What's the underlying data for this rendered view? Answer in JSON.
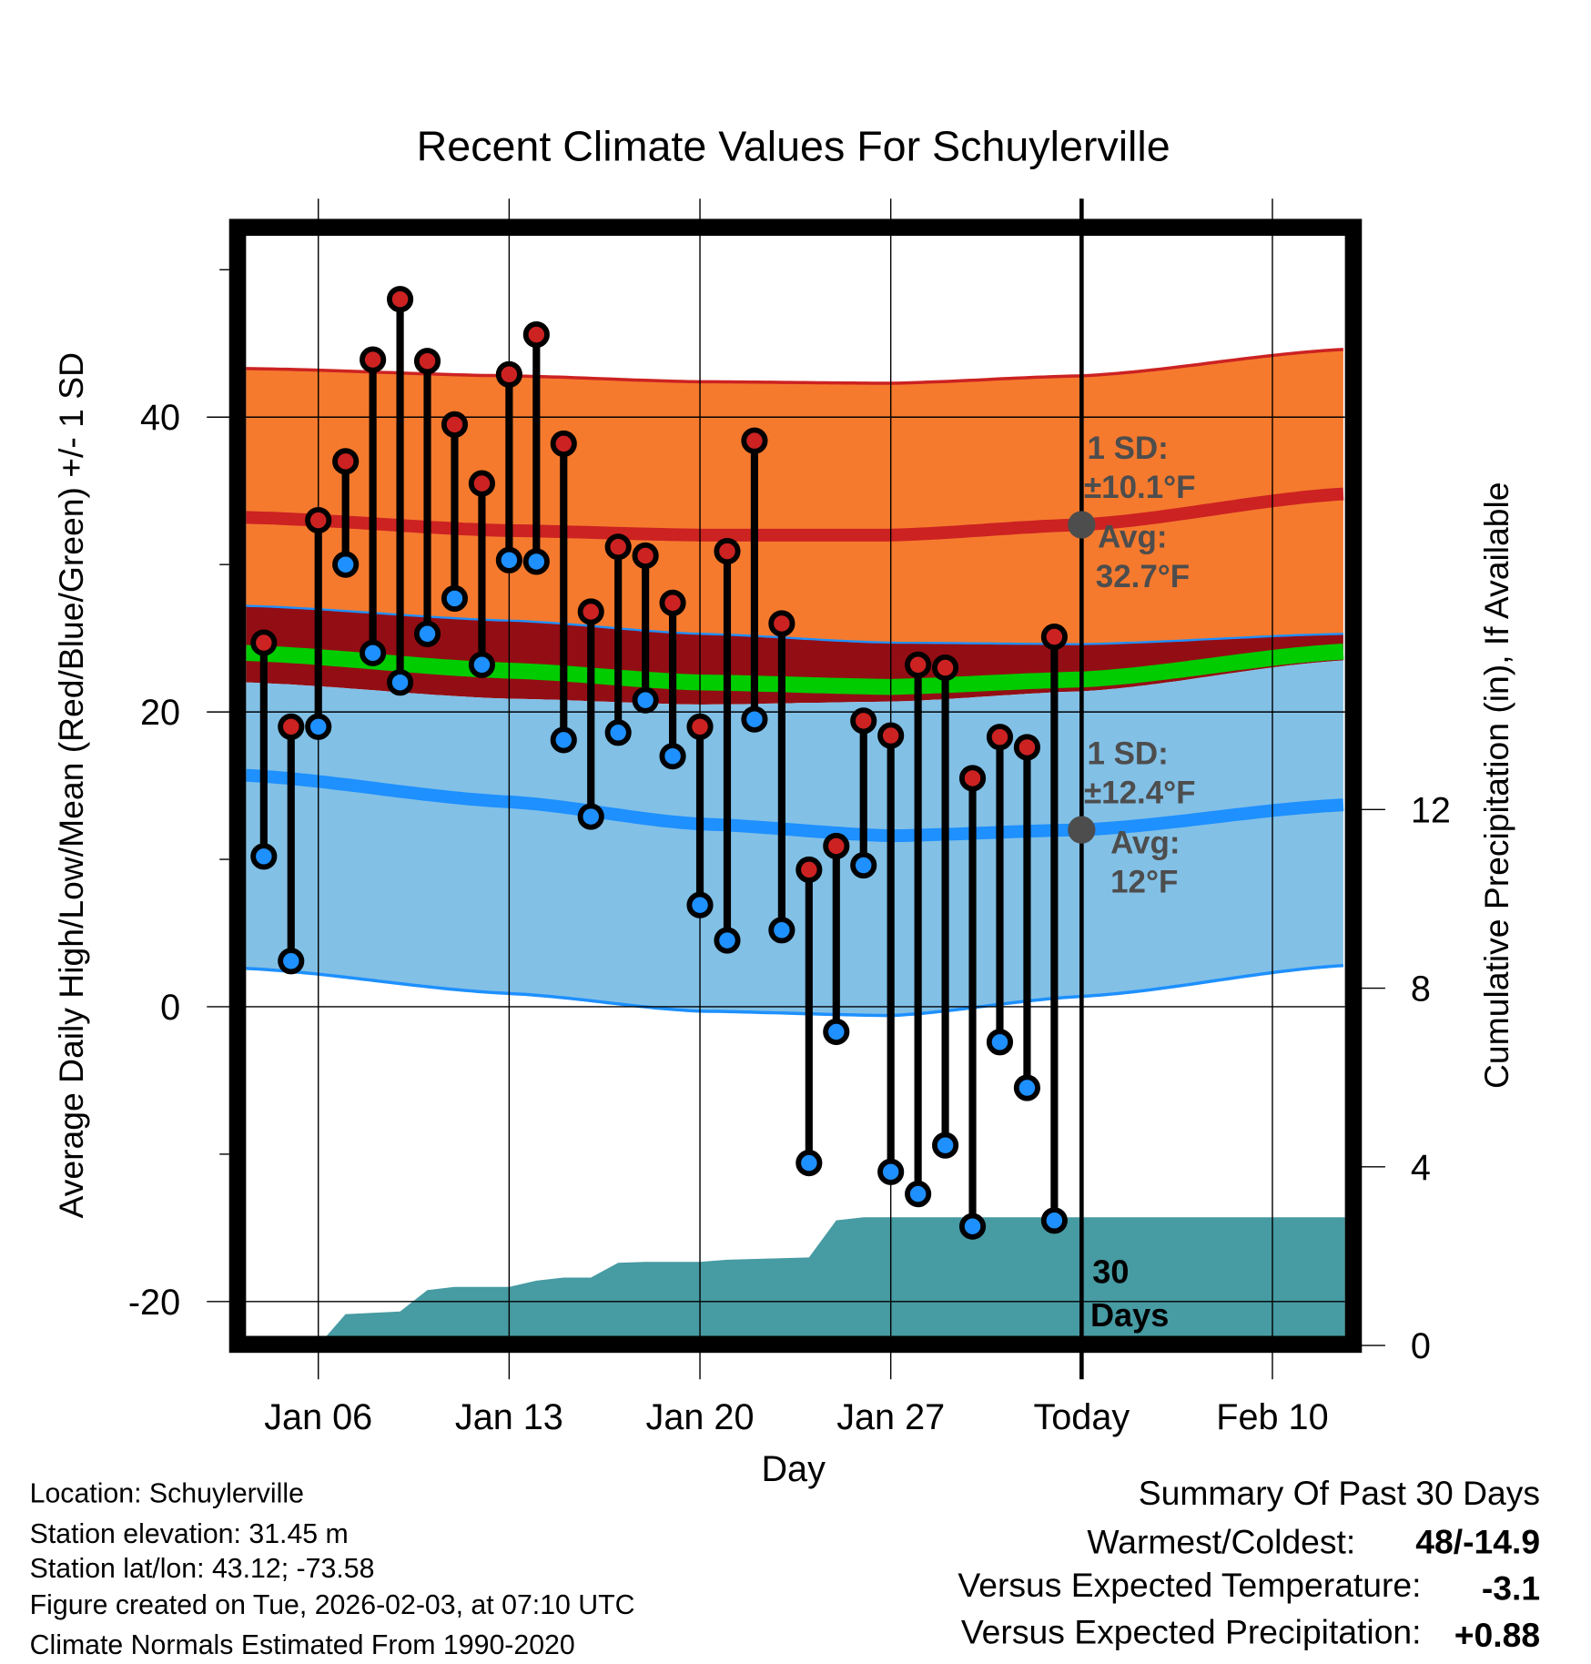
{
  "chart_data": {
    "type": "line",
    "title": "Recent Climate Values For Schuylerville",
    "xlabel": "Day",
    "ylabel": "Average Daily High/Low/Mean (Red/Blue/Green) +/- 1 SD",
    "y2label": "Cumulative Precipitation (in), If Available",
    "x_unit": "days since Jan 06",
    "xlim": [
      -2.65,
      37.66
    ],
    "ylim": [
      -22.4,
      52.3
    ],
    "y2lim": [
      0,
      24.85
    ],
    "x_ticks": [
      {
        "x": 0,
        "label": "Jan 06"
      },
      {
        "x": 7,
        "label": "Jan 13"
      },
      {
        "x": 14,
        "label": "Jan 20"
      },
      {
        "x": 21,
        "label": "Jan 27"
      },
      {
        "x": 28,
        "label": "Today"
      },
      {
        "x": 35,
        "label": "Feb 10"
      }
    ],
    "y_ticks": [
      {
        "v": -20,
        "label": "-20"
      },
      {
        "v": 0,
        "label": "0"
      },
      {
        "v": 20,
        "label": "20"
      },
      {
        "v": 40,
        "label": "40"
      }
    ],
    "y_minor_ticks": [
      -10,
      10,
      30,
      50
    ],
    "y2_ticks": [
      {
        "v": 0,
        "label": "0"
      },
      {
        "v": 4,
        "label": "4"
      },
      {
        "v": 8,
        "label": "8"
      },
      {
        "v": 12,
        "label": "12"
      }
    ],
    "grid": true,
    "today_x": 28,
    "observations": {
      "x": [
        -2,
        -1,
        0,
        1,
        2,
        3,
        4,
        5,
        6,
        7,
        8,
        9,
        10,
        11,
        12,
        13,
        14,
        15,
        16,
        17,
        18,
        19,
        20,
        21,
        22,
        23,
        24,
        25,
        26,
        27
      ],
      "high": [
        24.7,
        19.0,
        33.0,
        37.0,
        43.9,
        48.0,
        43.8,
        39.5,
        35.5,
        42.9,
        45.6,
        38.2,
        26.8,
        31.2,
        30.6,
        27.4,
        19.0,
        30.9,
        38.4,
        26.0,
        9.3,
        10.9,
        19.4,
        18.4,
        23.2,
        23.0,
        15.5,
        18.3,
        17.6,
        25.1
      ],
      "low": [
        10.2,
        3.1,
        19.0,
        30.0,
        24.0,
        22.0,
        25.3,
        27.7,
        23.2,
        30.3,
        30.2,
        18.1,
        12.9,
        18.6,
        20.8,
        17.0,
        6.9,
        4.5,
        19.5,
        5.2,
        -10.6,
        -1.7,
        9.6,
        -11.2,
        -12.7,
        -9.4,
        -14.9,
        -2.4,
        -5.5,
        -14.5
      ]
    },
    "normals": {
      "x": [
        -2.65,
        7,
        14,
        21,
        28,
        37.66
      ],
      "high_upper": [
        43.3,
        42.8,
        42.4,
        42.3,
        42.8,
        44.6
      ],
      "high_mean": [
        33.2,
        32.3,
        32.0,
        32.0,
        32.7,
        34.8
      ],
      "high_lower": [
        27.2,
        26.2,
        25.3,
        24.7,
        24.6,
        25.3
      ],
      "mean": [
        24.0,
        22.8,
        22.0,
        21.7,
        22.2,
        24.1
      ],
      "low_upper": [
        22.0,
        20.9,
        20.5,
        20.7,
        21.4,
        23.5
      ],
      "low_mean": [
        15.7,
        13.9,
        12.4,
        11.6,
        12.0,
        13.7
      ],
      "low_lower": [
        2.6,
        0.9,
        -0.3,
        -0.6,
        0.7,
        2.8
      ]
    },
    "precip": {
      "x": [
        0,
        1,
        3,
        4,
        5,
        7,
        8,
        9,
        10,
        11,
        12,
        14,
        15,
        18,
        19,
        20,
        37.66
      ],
      "cumulative": [
        0,
        0.7,
        0.76,
        1.24,
        1.31,
        1.31,
        1.45,
        1.52,
        1.52,
        1.85,
        1.87,
        1.87,
        1.92,
        1.97,
        2.8,
        2.87,
        2.87
      ]
    },
    "colors": {
      "high": "#cc2222",
      "low": "#1e90ff",
      "mean": "#00cc00",
      "high_band": "#f57a2e",
      "low_band": "#82c0e6",
      "overlap": "#930e14",
      "precip": "#479ba3",
      "annotation": "#4d4d4d"
    },
    "annotations": {
      "high_sd_label": "1 SD:",
      "high_sd_value": "±10.1°F",
      "high_avg_label": "Avg:",
      "high_avg_value": "32.7°F",
      "low_sd_label": "1 SD:",
      "low_sd_value": "±12.4°F",
      "low_avg_label": "Avg:",
      "low_avg_value": "12°F",
      "days_count": "30",
      "days_label": "Days"
    }
  },
  "footer_left": [
    "Location: Schuylerville",
    "Station elevation: 31.45 m",
    "Station lat/lon: 43.12; -73.58",
    "Figure created on Tue, 2026-02-03, at 07:10 UTC",
    "Climate Normals Estimated From 1990-2020"
  ],
  "summary": {
    "title": "Summary Of Past 30 Days",
    "warmest_coldest_label": "Warmest/Coldest:",
    "warmest_coldest_value": "48/-14.9",
    "temp_label": "Versus Expected Temperature:",
    "temp_value": "-3.1",
    "temp_color": "#1e90ff",
    "precip_label": "Versus Expected Precipitation:",
    "precip_value": "+0.88",
    "precip_color": "#22bb00"
  }
}
